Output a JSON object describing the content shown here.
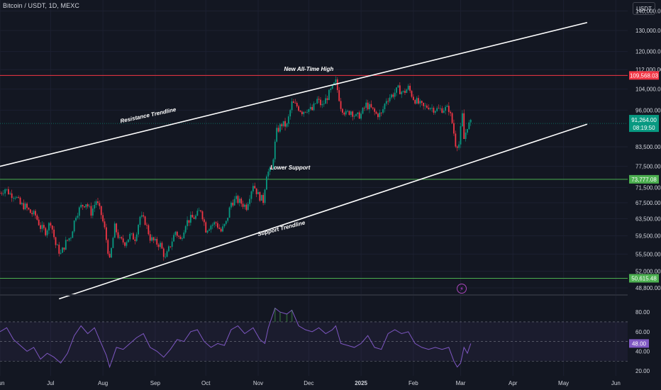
{
  "header": {
    "symbol_title": "Bitcoin / USDT, 1D, MEXC",
    "currency_unit": "USDT"
  },
  "icons": {
    "event_marker": "lightning-icon"
  },
  "colors": {
    "background": "#131722",
    "up_candle": "#089981",
    "down_candle": "#f23645",
    "resistance_level": "#f23645",
    "support_level": "#4caf50",
    "trendline": "#ffffff",
    "rsi_line": "#7e57c2",
    "axis_text": "#d1d4dc"
  },
  "chart_data": [
    {
      "type": "candlestick",
      "title": "Bitcoin / USDT, 1D, MEXC",
      "scale": "log",
      "ylim": [
        47500,
        146000
      ],
      "y_ticks": [
        48800,
        52000,
        55500,
        59500,
        63500,
        67500,
        71500,
        77500,
        83500,
        96000,
        104000,
        112000,
        120000,
        130000,
        140000
      ],
      "y_tick_labels": [
        "48,800.00",
        "52,000.00",
        "55,500.00",
        "59,500.00",
        "63,500.00",
        "67,500.00",
        "71,500.00",
        "77,500.00",
        "83,500.00",
        "96,000.00",
        "104,000.00",
        "112,000.00",
        "120,000.00",
        "130,000.00",
        "140,000.00"
      ],
      "x_range": [
        "2024-06-01",
        "2025-06-08"
      ],
      "x_ticks": [
        "2024-06-01",
        "2024-07-01",
        "2024-08-01",
        "2024-09-01",
        "2024-10-01",
        "2024-11-01",
        "2024-12-01",
        "2025-01-01",
        "2025-02-01",
        "2025-03-01",
        "2025-04-01",
        "2025-05-01",
        "2025-06-01"
      ],
      "x_tick_labels": [
        "Jun",
        "Jul",
        "Aug",
        "Sep",
        "Oct",
        "Nov",
        "Dec",
        "2025",
        "Feb",
        "Mar",
        "Apr",
        "May",
        "Jun"
      ],
      "close_series": [
        [
          "2024-06-01",
          70000
        ],
        [
          "2024-06-04",
          71200
        ],
        [
          "2024-06-07",
          69800
        ],
        [
          "2024-06-10",
          69400
        ],
        [
          "2024-06-13",
          67000
        ],
        [
          "2024-06-16",
          66500
        ],
        [
          "2024-06-19",
          65000
        ],
        [
          "2024-06-22",
          64300
        ],
        [
          "2024-06-25",
          61500
        ],
        [
          "2024-06-28",
          60500
        ],
        [
          "2024-07-01",
          62800
        ],
        [
          "2024-07-04",
          57500
        ],
        [
          "2024-07-07",
          55500
        ],
        [
          "2024-07-10",
          58000
        ],
        [
          "2024-07-13",
          59500
        ],
        [
          "2024-07-16",
          64500
        ],
        [
          "2024-07-19",
          66500
        ],
        [
          "2024-07-22",
          67500
        ],
        [
          "2024-07-25",
          65000
        ],
        [
          "2024-07-28",
          68000
        ],
        [
          "2024-07-31",
          64500
        ],
        [
          "2024-08-02",
          61000
        ],
        [
          "2024-08-05",
          54000
        ],
        [
          "2024-08-08",
          61500
        ],
        [
          "2024-08-11",
          58500
        ],
        [
          "2024-08-14",
          58000
        ],
        [
          "2024-08-17",
          59500
        ],
        [
          "2024-08-20",
          59000
        ],
        [
          "2024-08-23",
          64000
        ],
        [
          "2024-08-26",
          62800
        ],
        [
          "2024-08-29",
          59000
        ],
        [
          "2024-09-01",
          58000
        ],
        [
          "2024-09-04",
          57500
        ],
        [
          "2024-09-07",
          54500
        ],
        [
          "2024-09-10",
          57500
        ],
        [
          "2024-09-13",
          60500
        ],
        [
          "2024-09-16",
          58500
        ],
        [
          "2024-09-19",
          62500
        ],
        [
          "2024-09-22",
          63500
        ],
        [
          "2024-09-25",
          64000
        ],
        [
          "2024-09-28",
          65800
        ],
        [
          "2024-10-01",
          61000
        ],
        [
          "2024-10-04",
          62000
        ],
        [
          "2024-10-07",
          62500
        ],
        [
          "2024-10-10",
          60500
        ],
        [
          "2024-10-13",
          62500
        ],
        [
          "2024-10-16",
          67500
        ],
        [
          "2024-10-19",
          68300
        ],
        [
          "2024-10-22",
          67400
        ],
        [
          "2024-10-25",
          66500
        ],
        [
          "2024-10-29",
          72500
        ],
        [
          "2024-11-01",
          69500
        ],
        [
          "2024-11-04",
          68000
        ],
        [
          "2024-11-06",
          75500
        ],
        [
          "2024-11-09",
          76500
        ],
        [
          "2024-11-12",
          88500
        ],
        [
          "2024-11-15",
          91000
        ],
        [
          "2024-11-18",
          90500
        ],
        [
          "2024-11-21",
          98500
        ],
        [
          "2024-11-24",
          97500
        ],
        [
          "2024-11-27",
          95500
        ],
        [
          "2024-11-30",
          96500
        ],
        [
          "2024-12-03",
          96000
        ],
        [
          "2024-12-06",
          99800
        ],
        [
          "2024-12-09",
          97500
        ],
        [
          "2024-12-12",
          101000
        ],
        [
          "2024-12-15",
          104500
        ],
        [
          "2024-12-17",
          106800
        ],
        [
          "2024-12-20",
          97500
        ],
        [
          "2024-12-23",
          94500
        ],
        [
          "2024-12-26",
          95800
        ],
        [
          "2024-12-29",
          93500
        ],
        [
          "2025-01-01",
          94500
        ],
        [
          "2025-01-04",
          98000
        ],
        [
          "2025-01-07",
          96500
        ],
        [
          "2025-01-10",
          94500
        ],
        [
          "2025-01-13",
          94500
        ],
        [
          "2025-01-16",
          100000
        ],
        [
          "2025-01-20",
          102000
        ],
        [
          "2025-01-23",
          104000
        ],
        [
          "2025-01-26",
          102500
        ],
        [
          "2025-01-29",
          104500
        ],
        [
          "2025-02-01",
          100500
        ],
        [
          "2025-02-04",
          98500
        ],
        [
          "2025-02-07",
          97000
        ],
        [
          "2025-02-10",
          97500
        ],
        [
          "2025-02-13",
          96500
        ],
        [
          "2025-02-16",
          96200
        ],
        [
          "2025-02-19",
          96500
        ],
        [
          "2025-02-22",
          96500
        ],
        [
          "2025-02-24",
          91500
        ],
        [
          "2025-02-26",
          84500
        ],
        [
          "2025-02-28",
          84300
        ],
        [
          "2025-03-02",
          94000
        ],
        [
          "2025-03-03",
          86000
        ],
        [
          "2025-03-05",
          90500
        ],
        [
          "2025-03-07",
          91264
        ]
      ],
      "horizontal_levels": [
        {
          "name": "New All-Time High",
          "value": 109568.03,
          "label": "109,568.03",
          "color": "#f23645"
        },
        {
          "name": "Lower Support",
          "value": 73777.08,
          "label": "73,777.08",
          "color": "#4caf50"
        },
        {
          "name": "",
          "value": 50615.48,
          "label": "50,615.48",
          "color": "#4caf50"
        }
      ],
      "trendlines": [
        {
          "name": "Resistance Trendline",
          "from": [
            "2024-06-01",
            77500
          ],
          "to": [
            "2025-05-15",
            134000
          ]
        },
        {
          "name": "Support Trendline",
          "from": [
            "2024-07-06",
            46800
          ],
          "to": [
            "2025-05-15",
            91000
          ]
        }
      ],
      "annotations": [
        {
          "text": "New All-Time High",
          "at": [
            "2024-12-01",
            111500
          ]
        },
        {
          "text": "Resistance Trendline",
          "at": [
            "2024-08-28",
            93500
          ]
        },
        {
          "text": "Lower Support",
          "at": [
            "2024-11-20",
            76600
          ]
        },
        {
          "text": "Support Trendline",
          "at": [
            "2024-11-15",
            60800
          ]
        }
      ],
      "last_price": {
        "value": 91264,
        "label": "91,264.00",
        "countdown": "08:19:50"
      }
    },
    {
      "type": "line",
      "title": "",
      "ylim": [
        15,
        96
      ],
      "y_ticks": [
        20,
        40,
        60,
        80
      ],
      "y_tick_labels": [
        "20.00",
        "40.00",
        "60.00",
        "80.00"
      ],
      "bands": {
        "upper": 70,
        "middle": 50,
        "lower": 30
      },
      "series": [
        {
          "values": [
            [
              "2024-06-01",
              60
            ],
            [
              "2024-06-05",
              64
            ],
            [
              "2024-06-09",
              52
            ],
            [
              "2024-06-13",
              46
            ],
            [
              "2024-06-17",
              40
            ],
            [
              "2024-06-21",
              44
            ],
            [
              "2024-06-25",
              32
            ],
            [
              "2024-06-29",
              38
            ],
            [
              "2024-07-03",
              34
            ],
            [
              "2024-07-07",
              28
            ],
            [
              "2024-07-11",
              38
            ],
            [
              "2024-07-15",
              56
            ],
            [
              "2024-07-19",
              66
            ],
            [
              "2024-07-23",
              58
            ],
            [
              "2024-07-27",
              64
            ],
            [
              "2024-07-31",
              48
            ],
            [
              "2024-08-03",
              36
            ],
            [
              "2024-08-05",
              24
            ],
            [
              "2024-08-09",
              44
            ],
            [
              "2024-08-13",
              42
            ],
            [
              "2024-08-17",
              48
            ],
            [
              "2024-08-21",
              54
            ],
            [
              "2024-08-25",
              58
            ],
            [
              "2024-08-29",
              44
            ],
            [
              "2024-09-02",
              40
            ],
            [
              "2024-09-06",
              34
            ],
            [
              "2024-09-10",
              42
            ],
            [
              "2024-09-14",
              52
            ],
            [
              "2024-09-18",
              50
            ],
            [
              "2024-09-22",
              60
            ],
            [
              "2024-09-26",
              62
            ],
            [
              "2024-09-30",
              50
            ],
            [
              "2024-10-04",
              44
            ],
            [
              "2024-10-08",
              48
            ],
            [
              "2024-10-12",
              46
            ],
            [
              "2024-10-16",
              62
            ],
            [
              "2024-10-20",
              66
            ],
            [
              "2024-10-24",
              58
            ],
            [
              "2024-10-29",
              64
            ],
            [
              "2024-11-02",
              52
            ],
            [
              "2024-11-05",
              48
            ],
            [
              "2024-11-07",
              64
            ],
            [
              "2024-11-11",
              84
            ],
            [
              "2024-11-14",
              80
            ],
            [
              "2024-11-18",
              78
            ],
            [
              "2024-11-21",
              82
            ],
            [
              "2024-11-25",
              66
            ],
            [
              "2024-11-29",
              62
            ],
            [
              "2024-12-03",
              60
            ],
            [
              "2024-12-07",
              64
            ],
            [
              "2024-12-11",
              58
            ],
            [
              "2024-12-15",
              62
            ],
            [
              "2024-12-17",
              66
            ],
            [
              "2024-12-20",
              48
            ],
            [
              "2024-12-24",
              46
            ],
            [
              "2024-12-28",
              44
            ],
            [
              "2025-01-01",
              48
            ],
            [
              "2025-01-05",
              56
            ],
            [
              "2025-01-09",
              44
            ],
            [
              "2025-01-13",
              42
            ],
            [
              "2025-01-17",
              58
            ],
            [
              "2025-01-21",
              62
            ],
            [
              "2025-01-25",
              58
            ],
            [
              "2025-01-29",
              60
            ],
            [
              "2025-02-02",
              48
            ],
            [
              "2025-02-06",
              44
            ],
            [
              "2025-02-10",
              42
            ],
            [
              "2025-02-14",
              44
            ],
            [
              "2025-02-18",
              42
            ],
            [
              "2025-02-22",
              44
            ],
            [
              "2025-02-25",
              30
            ],
            [
              "2025-02-27",
              24
            ],
            [
              "2025-03-01",
              28
            ],
            [
              "2025-03-03",
              44
            ],
            [
              "2025-03-05",
              38
            ],
            [
              "2025-03-07",
              48
            ]
          ]
        }
      ],
      "last_value": {
        "value": 48,
        "label": "48.00"
      }
    }
  ]
}
